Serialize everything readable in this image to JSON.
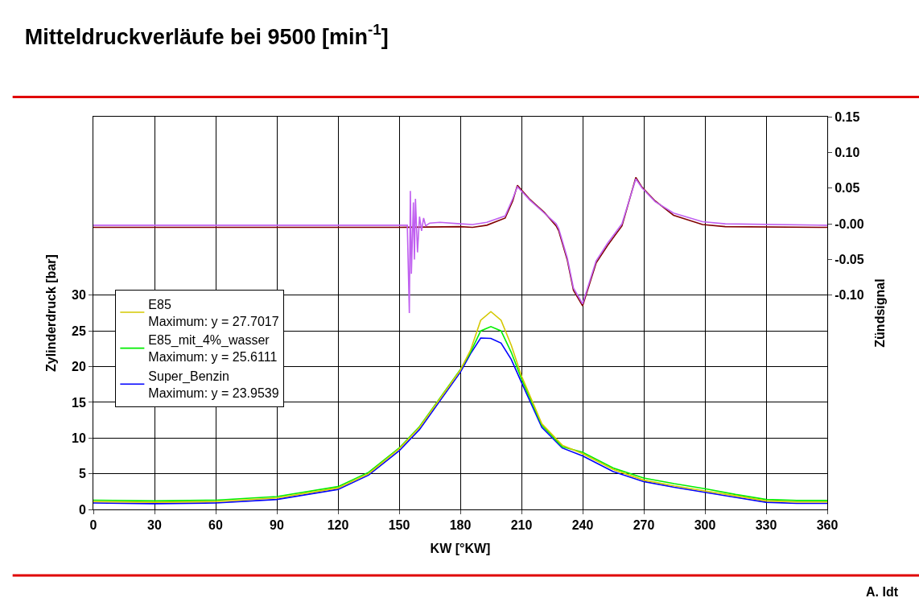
{
  "chart_data": {
    "type": "line",
    "title": "Mitteldruckverläufe bei 9500 [min$^{-1}$]",
    "xlabel": "KW [°KW]",
    "ylabel": "Zylinderdruck [bar]",
    "y2label": "Zündsignal",
    "xlim": [
      0,
      360
    ],
    "xticks": [
      0,
      30,
      60,
      90,
      120,
      150,
      180,
      210,
      240,
      270,
      300,
      330,
      360
    ],
    "ylim": [
      0,
      55
    ],
    "yticks": [
      0,
      5,
      10,
      15,
      20,
      25,
      30
    ],
    "y2lim": [
      -0.4,
      0.15
    ],
    "y2ticks": [
      {
        "value": -0.1,
        "label": "-0.10"
      },
      {
        "value": -0.05,
        "label": "-0.05"
      },
      {
        "value": 0,
        "label": "-0.00"
      },
      {
        "value": 0.05,
        "label": "0.05"
      },
      {
        "value": 0.1,
        "label": "0.10"
      },
      {
        "value": 0.15,
        "label": "0.15"
      }
    ],
    "grid": true,
    "legend": "left",
    "annotations": [
      "Maximum: y = 27.7017",
      "Maximum: y = 25.6111",
      "Maximum: y = 23.9539",
      "A. Idt"
    ],
    "series": [
      {
        "name": "E85",
        "color": "#d4c800",
        "x": [
          0,
          30,
          60,
          90,
          120,
          135,
          150,
          160,
          170,
          180,
          185,
          190,
          195,
          200,
          205,
          210,
          220,
          230,
          240,
          255,
          270,
          285,
          300,
          315,
          330,
          345,
          360
        ],
        "values": [
          1.1,
          1.0,
          1.1,
          1.6,
          3.0,
          5.0,
          8.5,
          11.5,
          15.5,
          19.5,
          22.3,
          26.5,
          27.7017,
          26.5,
          23.0,
          18.7,
          12.0,
          9.0,
          7.8,
          5.6,
          4.1,
          3.3,
          2.6,
          1.9,
          1.2,
          1.05,
          1.05
        ]
      },
      {
        "name": "E85_mit_4%_wasser",
        "color": "#00ee00",
        "x": [
          0,
          30,
          60,
          90,
          120,
          135,
          150,
          160,
          170,
          180,
          185,
          190,
          195,
          200,
          205,
          210,
          220,
          230,
          240,
          255,
          270,
          285,
          300,
          315,
          330,
          345,
          360
        ],
        "values": [
          1.3,
          1.2,
          1.3,
          1.8,
          3.2,
          5.2,
          8.6,
          11.6,
          15.6,
          19.6,
          22.0,
          25.0,
          25.6111,
          25.0,
          22.0,
          18.3,
          11.8,
          8.8,
          8.0,
          5.8,
          4.4,
          3.6,
          2.9,
          2.1,
          1.4,
          1.25,
          1.25
        ]
      },
      {
        "name": "Super_Benzin",
        "color": "#0000ff",
        "x": [
          0,
          30,
          60,
          90,
          120,
          135,
          150,
          160,
          170,
          180,
          185,
          190,
          195,
          200,
          205,
          210,
          220,
          230,
          240,
          255,
          270,
          285,
          300,
          315,
          330,
          345,
          360
        ],
        "values": [
          0.9,
          0.8,
          0.9,
          1.4,
          2.8,
          4.8,
          8.2,
          11.2,
          15.2,
          19.2,
          21.8,
          24.0,
          23.9539,
          23.3,
          21.0,
          17.8,
          11.5,
          8.6,
          7.5,
          5.3,
          3.9,
          3.1,
          2.4,
          1.7,
          1.0,
          0.85,
          0.85
        ]
      },
      {
        "color": "#800000",
        "axis": "y2",
        "x": [
          0,
          150,
          180,
          186,
          193,
          202,
          205.7,
          208,
          214.2,
          221.2,
          227,
          228.3,
          232.5,
          235.5,
          236.7,
          240,
          246.6,
          252.3,
          259.3,
          266.1,
          269.2,
          275.6,
          284.6,
          298.8,
          310,
          360
        ],
        "values": [
          -0.005,
          -0.005,
          -0.004,
          -0.005,
          -0.002,
          0.008,
          0.032,
          0.054,
          0.034,
          0.016,
          -0.003,
          -0.01,
          -0.051,
          -0.093,
          -0.099,
          -0.115,
          -0.055,
          -0.03,
          -0.003,
          0.065,
          0.051,
          0.032,
          0.012,
          -0.001,
          -0.004,
          -0.005
        ]
      },
      {
        "color": "#c060f0",
        "axis": "y2",
        "x": [
          0,
          154,
          155,
          155.5,
          156,
          157,
          157.5,
          158,
          159,
          160,
          161,
          162,
          163,
          165,
          170,
          180,
          186,
          193,
          202,
          205.7,
          208,
          214.2,
          221.2,
          227,
          228.3,
          232.5,
          235.5,
          236.7,
          240,
          246.6,
          252.3,
          259.3,
          266.1,
          269.2,
          275.6,
          284.6,
          298.8,
          310,
          360
        ],
        "values": [
          -0.002,
          -0.002,
          -0.125,
          0.046,
          -0.07,
          0.03,
          -0.05,
          0.035,
          -0.04,
          0.01,
          -0.01,
          0.008,
          -0.003,
          0.001,
          0.002,
          0,
          -0.001,
          0.002,
          0.011,
          0.035,
          0.052,
          0.033,
          0.015,
          0,
          -0.007,
          -0.048,
          -0.09,
          -0.096,
          -0.112,
          -0.052,
          -0.027,
          0,
          0.063,
          0.05,
          0.031,
          0.015,
          0.003,
          0,
          -0.002
        ]
      }
    ]
  }
}
